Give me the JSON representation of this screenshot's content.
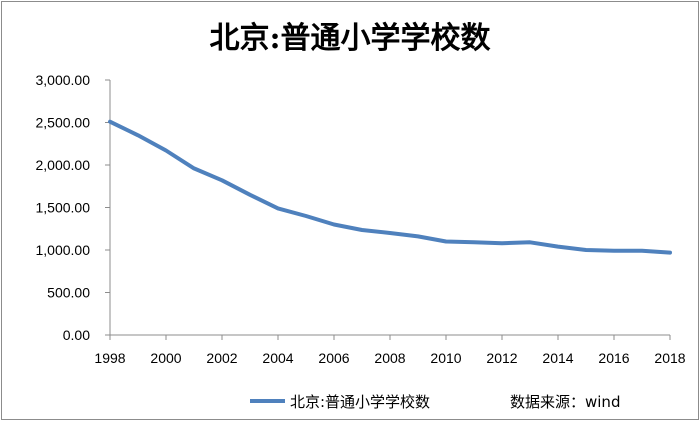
{
  "chart_data": {
    "type": "line",
    "title": "北京:普通小学学校数",
    "source": "数据来源：wind",
    "x": [
      1998,
      1999,
      2000,
      2001,
      2002,
      2003,
      2004,
      2005,
      2006,
      2007,
      2008,
      2009,
      2010,
      2011,
      2012,
      2013,
      2014,
      2015,
      2016,
      2017,
      2018
    ],
    "x_tick_labels": [
      "1998",
      "2000",
      "2002",
      "2004",
      "2006",
      "2008",
      "2010",
      "2012",
      "2014",
      "2016",
      "2018"
    ],
    "y_tick_labels": [
      "3,000.00",
      "2,500.00",
      "2,000.00",
      "1,500.00",
      "1,000.00",
      "500.00",
      "0.00"
    ],
    "ylim": [
      0,
      3000
    ],
    "xlim": [
      1998,
      2018
    ],
    "grid": false,
    "legend_position": "bottom",
    "series": [
      {
        "name": "北京:普通小学学校数",
        "color": "#4f81bd",
        "values": [
          2510,
          2350,
          2170,
          1960,
          1820,
          1650,
          1490,
          1400,
          1300,
          1235,
          1200,
          1160,
          1100,
          1090,
          1080,
          1090,
          1040,
          1000,
          990,
          990,
          970
        ]
      }
    ]
  }
}
